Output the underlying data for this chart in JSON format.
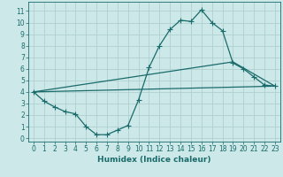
{
  "xlabel": "Humidex (Indice chaleur)",
  "bg_color": "#cce8e8",
  "grid_color": "#b0d0d0",
  "line_color": "#1a6b6b",
  "xlim": [
    -0.5,
    23.5
  ],
  "ylim": [
    -0.3,
    11.8
  ],
  "xticks": [
    0,
    1,
    2,
    3,
    4,
    5,
    6,
    7,
    8,
    9,
    10,
    11,
    12,
    13,
    14,
    15,
    16,
    17,
    18,
    19,
    20,
    21,
    22,
    23
  ],
  "yticks": [
    0,
    1,
    2,
    3,
    4,
    5,
    6,
    7,
    8,
    9,
    10,
    11
  ],
  "line1_x": [
    0,
    1,
    2,
    3,
    4,
    5,
    6,
    7,
    8,
    9,
    10,
    11,
    12,
    13,
    14,
    15,
    16,
    17,
    18,
    19,
    20,
    21,
    22,
    23
  ],
  "line1_y": [
    4.0,
    3.2,
    2.7,
    2.3,
    2.1,
    1.0,
    0.3,
    0.3,
    0.7,
    1.1,
    3.3,
    6.1,
    8.0,
    9.4,
    10.2,
    10.1,
    11.1,
    10.0,
    9.3,
    6.5,
    6.0,
    5.3,
    4.6,
    4.5
  ],
  "line2_x": [
    0,
    23
  ],
  "line2_y": [
    4.0,
    4.5
  ],
  "line3_x": [
    0,
    19,
    23
  ],
  "line3_y": [
    4.0,
    6.6,
    4.5
  ],
  "marker_size": 2.5,
  "linewidth": 0.9,
  "font_size_label": 6.5,
  "font_size_tick": 5.5
}
